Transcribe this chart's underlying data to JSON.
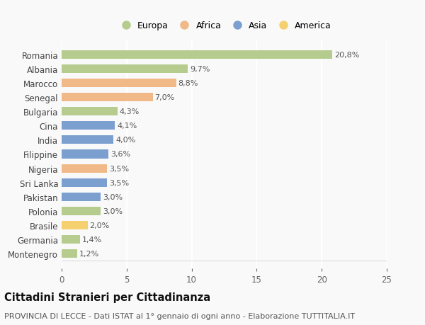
{
  "countries": [
    "Romania",
    "Albania",
    "Marocco",
    "Senegal",
    "Bulgaria",
    "Cina",
    "India",
    "Filippine",
    "Nigeria",
    "Sri Lanka",
    "Pakistan",
    "Polonia",
    "Brasile",
    "Germania",
    "Montenegro"
  ],
  "values": [
    20.8,
    9.7,
    8.8,
    7.0,
    4.3,
    4.1,
    4.0,
    3.6,
    3.5,
    3.5,
    3.0,
    3.0,
    2.0,
    1.4,
    1.2
  ],
  "labels": [
    "20,8%",
    "9,7%",
    "8,8%",
    "7,0%",
    "4,3%",
    "4,1%",
    "4,0%",
    "3,6%",
    "3,5%",
    "3,5%",
    "3,0%",
    "3,0%",
    "2,0%",
    "1,4%",
    "1,2%"
  ],
  "categories": [
    "Europa",
    "Europa",
    "Africa",
    "Africa",
    "Europa",
    "Asia",
    "Asia",
    "Asia",
    "Africa",
    "Asia",
    "Asia",
    "Europa",
    "America",
    "Europa",
    "Europa"
  ],
  "colors": {
    "Europa": "#b5cc8e",
    "Africa": "#f0b987",
    "Asia": "#7b9fcf",
    "America": "#f5d06e"
  },
  "legend_order": [
    "Europa",
    "Africa",
    "Asia",
    "America"
  ],
  "title": "Cittadini Stranieri per Cittadinanza",
  "subtitle": "PROVINCIA DI LECCE - Dati ISTAT al 1° gennaio di ogni anno - Elaborazione TUTTITALIA.IT",
  "xlim": [
    0,
    25
  ],
  "xticks": [
    0,
    5,
    10,
    15,
    20,
    25
  ],
  "background_color": "#f9f9f9",
  "grid_color": "#ffffff",
  "bar_height": 0.6,
  "title_fontsize": 10.5,
  "subtitle_fontsize": 8.0,
  "label_fontsize": 8.0,
  "tick_fontsize": 8.5,
  "legend_fontsize": 9.0
}
